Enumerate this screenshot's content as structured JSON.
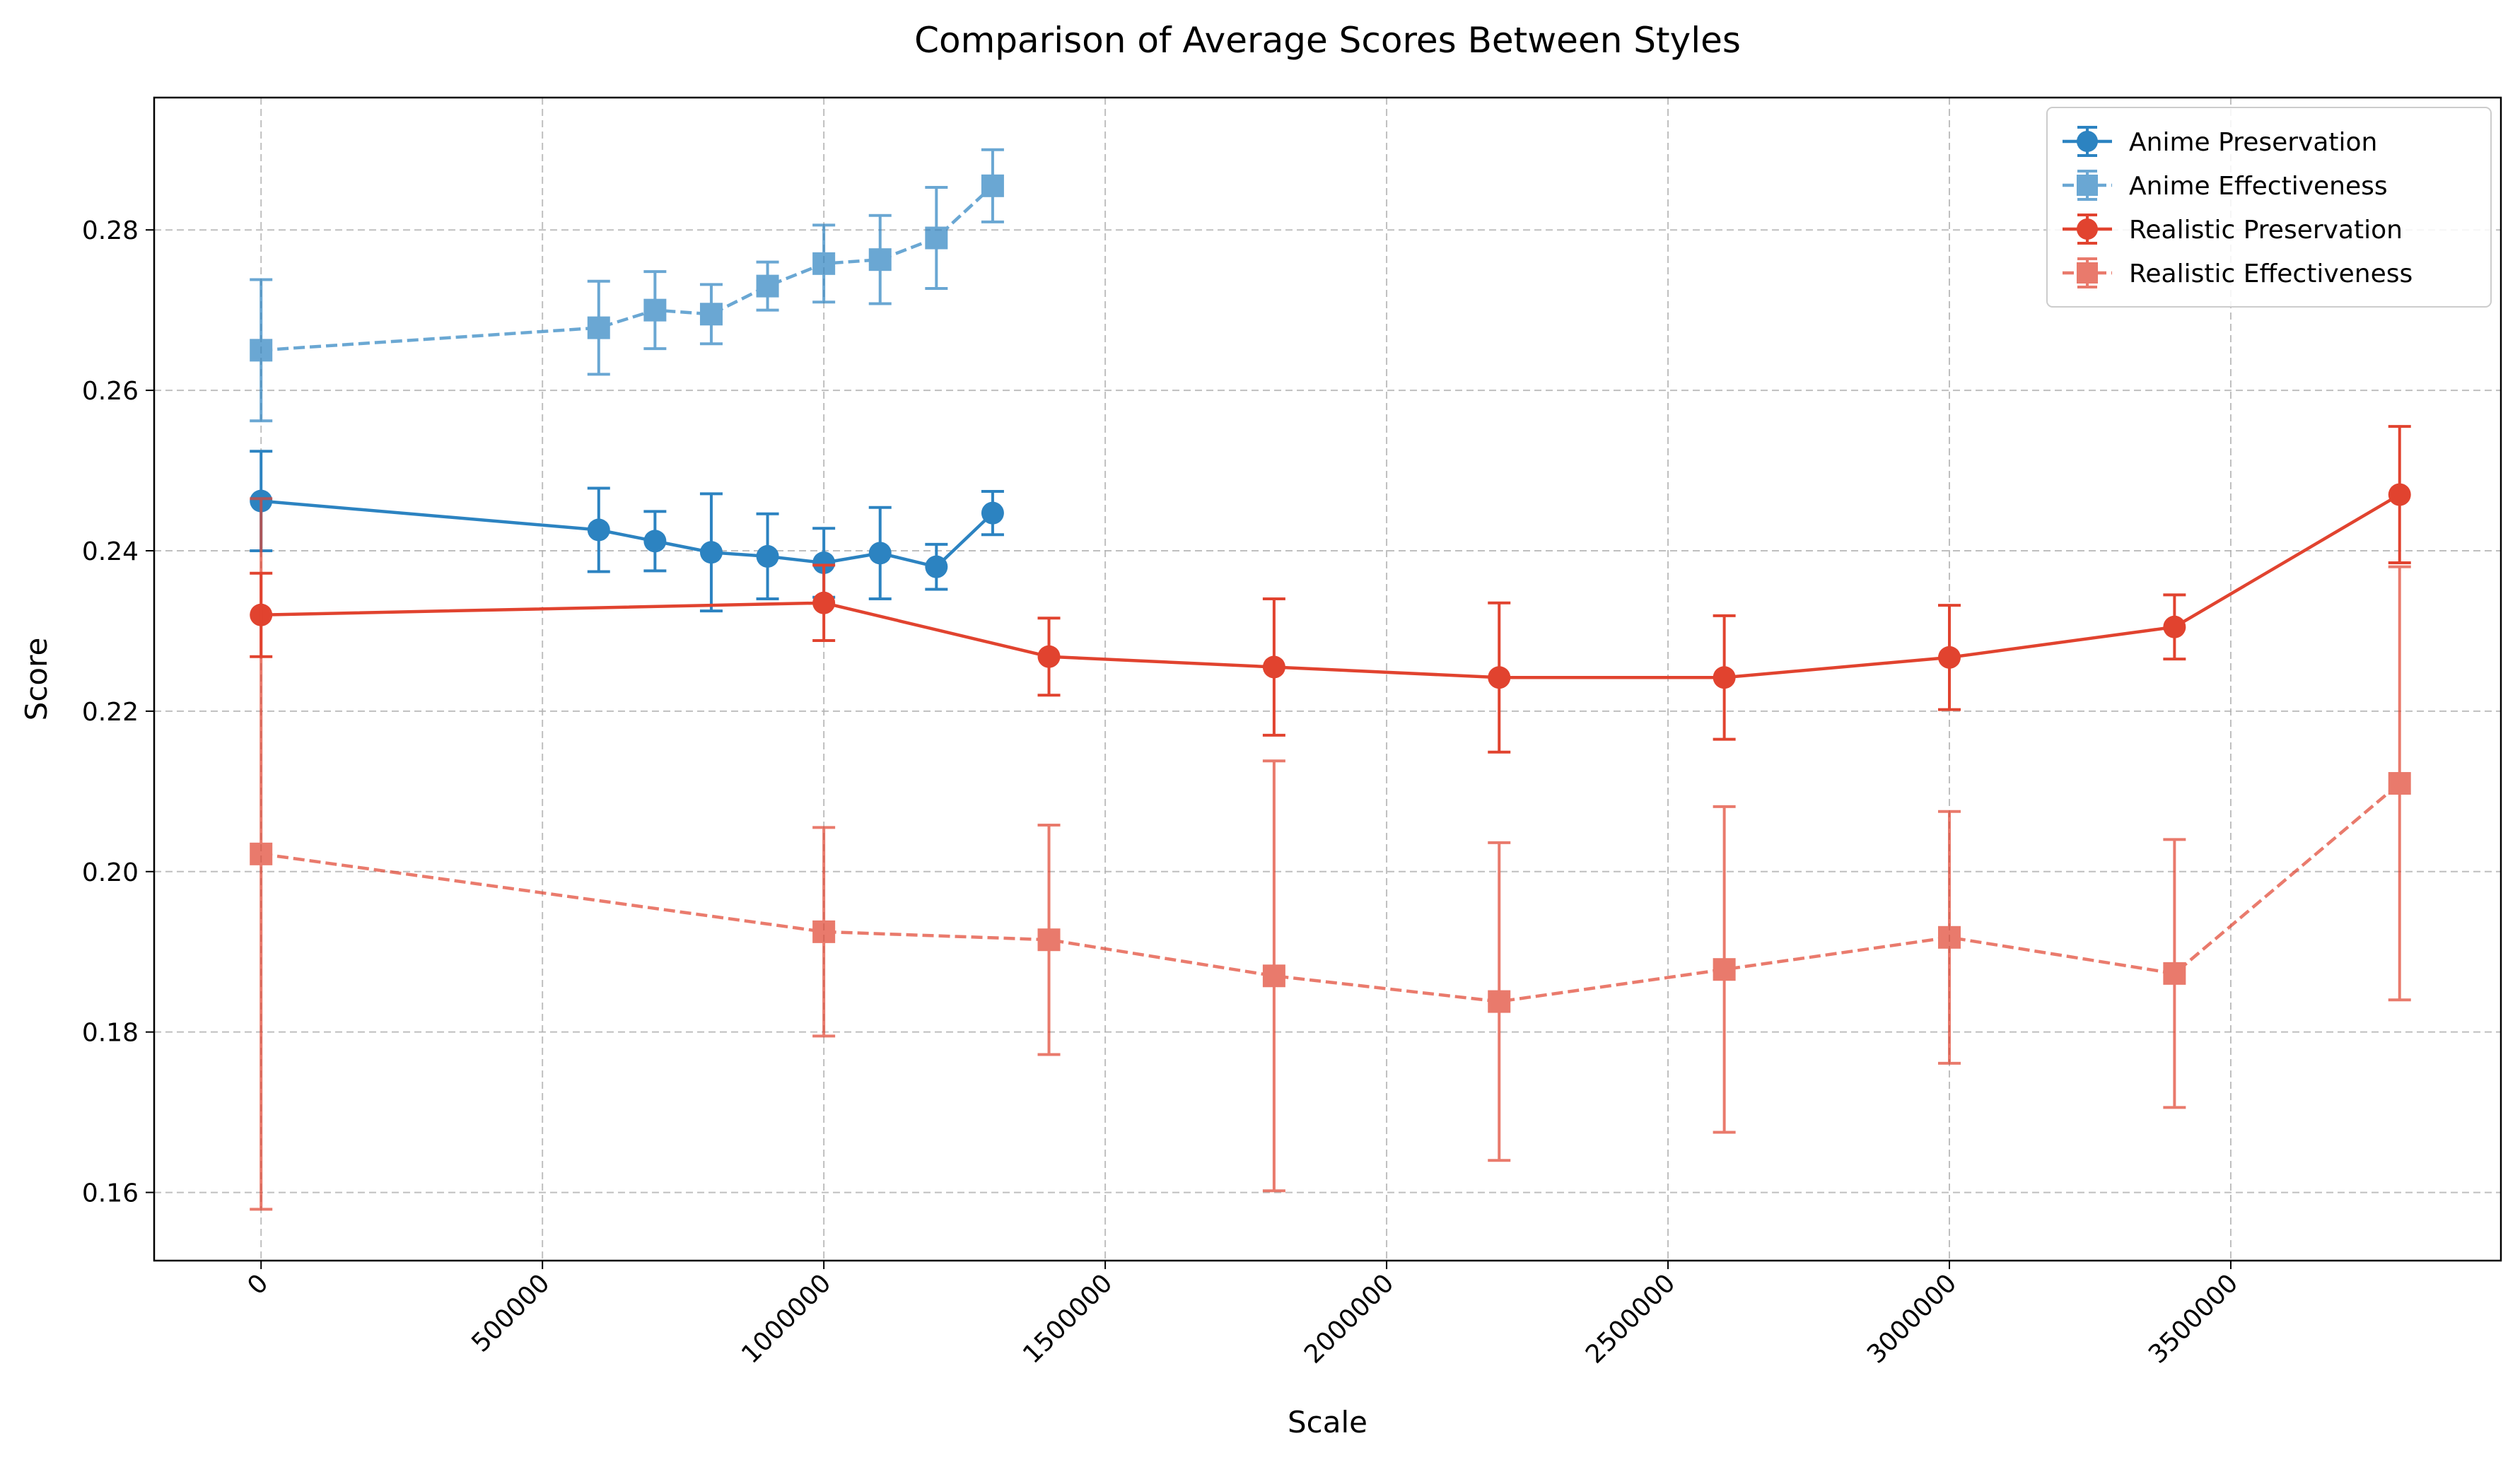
{
  "chart_data": {
    "type": "line",
    "title": "Comparison of Average Scores Between Styles",
    "xlabel": "Scale",
    "ylabel": "Score",
    "xlim": [
      -190000,
      3980000
    ],
    "ylim": [
      0.1515,
      0.2965
    ],
    "xticks": [
      0,
      500000,
      1000000,
      1500000,
      2000000,
      2500000,
      3000000,
      3500000
    ],
    "xtick_labels": [
      "0",
      "500000",
      "1000000",
      "1500000",
      "2000000",
      "2500000",
      "3000000",
      "3500000"
    ],
    "yticks": [
      0.16,
      0.18,
      0.2,
      0.22,
      0.24,
      0.26,
      0.28
    ],
    "ytick_labels": [
      "0.16",
      "0.18",
      "0.20",
      "0.22",
      "0.24",
      "0.26",
      "0.28"
    ],
    "grid": true,
    "legend_position": "top-right",
    "series": [
      {
        "name": "Anime Preservation",
        "color": "#2c83c1",
        "marker": "circle",
        "linestyle": "solid",
        "opacity": 1,
        "x": [
          0,
          600000,
          700000,
          800000,
          900000,
          1000000,
          1100000,
          1200000,
          1300000
        ],
        "y": [
          0.2462,
          0.2426,
          0.2412,
          0.2398,
          0.2393,
          0.2385,
          0.2397,
          0.238,
          0.2447
        ],
        "err": [
          0.0062,
          0.0052,
          0.0037,
          0.0073,
          0.0053,
          0.0043,
          0.0057,
          0.0028,
          0.0027
        ]
      },
      {
        "name": "Anime Effectiveness",
        "color": "#2c83c1",
        "marker": "square",
        "linestyle": "dashed",
        "opacity": 0.7,
        "x": [
          0,
          600000,
          700000,
          800000,
          900000,
          1000000,
          1100000,
          1200000,
          1300000
        ],
        "y": [
          0.265,
          0.2678,
          0.27,
          0.2695,
          0.273,
          0.2758,
          0.2763,
          0.279,
          0.2855
        ],
        "err": [
          0.0088,
          0.0058,
          0.0048,
          0.0037,
          0.003,
          0.0048,
          0.0055,
          0.0063,
          0.0045
        ]
      },
      {
        "name": "Realistic Preservation",
        "color": "#e1432f",
        "marker": "circle",
        "linestyle": "solid",
        "opacity": 1,
        "x": [
          0,
          1000000,
          1400000,
          1800000,
          2200000,
          2600000,
          3000000,
          3400000,
          3800000
        ],
        "y": [
          0.232,
          0.2335,
          0.2268,
          0.2255,
          0.2242,
          0.2242,
          0.2267,
          0.2305,
          0.247
        ],
        "err": [
          0.0052,
          0.0047,
          0.0048,
          0.0085,
          0.0093,
          0.0077,
          0.0065,
          0.004,
          0.0085
        ]
      },
      {
        "name": "Realistic Effectiveness",
        "color": "#e1432f",
        "marker": "square",
        "linestyle": "dashed",
        "opacity": 0.7,
        "x": [
          0,
          1000000,
          1400000,
          1800000,
          2200000,
          2600000,
          3000000,
          3400000,
          3800000
        ],
        "y": [
          0.2022,
          0.1925,
          0.1915,
          0.187,
          0.1838,
          0.1878,
          0.1918,
          0.1873,
          0.211
        ],
        "err": [
          0.0443,
          0.013,
          0.0143,
          0.0268,
          0.0198,
          0.0203,
          0.0157,
          0.0167,
          0.027
        ]
      }
    ]
  }
}
